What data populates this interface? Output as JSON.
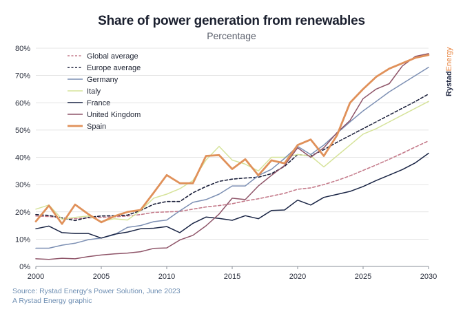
{
  "brand": {
    "part1": "Rystad",
    "part2": "Energy"
  },
  "source": {
    "line1": "Source: Rystad Energy's Power Solution, June 2023",
    "line2": "A Rystad Energy graphic"
  },
  "chart_data": {
    "type": "line",
    "title": "Share of power generation from renewables",
    "subtitle": "Percentage",
    "xlabel": "",
    "ylabel": "",
    "xlim": [
      2000,
      2030
    ],
    "ylim": [
      0,
      80
    ],
    "x_ticks": [
      2000,
      2005,
      2010,
      2015,
      2020,
      2025,
      2030
    ],
    "y_ticks": [
      0,
      10,
      20,
      30,
      40,
      50,
      60,
      70,
      80
    ],
    "y_tick_labels": [
      "0%",
      "10%",
      "20%",
      "30%",
      "40%",
      "50%",
      "60%",
      "70%",
      "80%"
    ],
    "grid": "horizontal",
    "legend_position": "top-left",
    "x": [
      2000,
      2001,
      2002,
      2003,
      2004,
      2005,
      2006,
      2007,
      2008,
      2009,
      2010,
      2011,
      2012,
      2013,
      2014,
      2015,
      2016,
      2017,
      2018,
      2019,
      2020,
      2021,
      2022,
      2023,
      2024,
      2025,
      2026,
      2027,
      2028,
      2029,
      2030
    ],
    "series": [
      {
        "name": "Global average",
        "color": "#c47a8a",
        "style": "dashed",
        "values": [
          18.5,
          18.3,
          17.8,
          17.5,
          17.8,
          18.0,
          18.2,
          18.5,
          19.0,
          19.8,
          20.0,
          20.2,
          21.0,
          21.8,
          22.3,
          23.0,
          24.0,
          24.8,
          25.8,
          26.8,
          28.3,
          28.8,
          30.0,
          31.5,
          33.2,
          35.2,
          37.2,
          39.3,
          41.5,
          43.8,
          46.0
        ]
      },
      {
        "name": "Europe average",
        "color": "#1a1f3a",
        "style": "dashed",
        "values": [
          19.0,
          18.7,
          17.8,
          16.8,
          18.0,
          18.5,
          18.6,
          18.8,
          20.5,
          22.8,
          23.8,
          23.8,
          27.0,
          29.3,
          31.2,
          32.0,
          32.4,
          32.7,
          34.0,
          36.7,
          41.0,
          40.5,
          42.8,
          45.5,
          48.0,
          50.5,
          53.0,
          55.5,
          58.0,
          60.5,
          63.2
        ]
      },
      {
        "name": "Germany",
        "color": "#7c8fb3",
        "style": "solid",
        "values": [
          6.7,
          6.7,
          7.8,
          8.5,
          9.8,
          10.4,
          11.6,
          14.3,
          15.0,
          16.4,
          17.0,
          20.4,
          23.5,
          24.5,
          26.5,
          29.5,
          29.5,
          33.3,
          35.6,
          39.6,
          44.0,
          41.0,
          44.5,
          48.8,
          53.0,
          57.0,
          60.5,
          64.0,
          67.0,
          70.0,
          73.0
        ]
      },
      {
        "name": "Italy",
        "color": "#d6e39a",
        "style": "solid",
        "values": [
          21.0,
          22.5,
          17.3,
          18.0,
          18.5,
          16.5,
          17.5,
          17.0,
          20.5,
          25.0,
          26.5,
          28.5,
          31.5,
          39.0,
          44.0,
          39.0,
          37.5,
          35.0,
          40.0,
          40.0,
          41.0,
          40.5,
          36.5,
          40.5,
          44.5,
          48.5,
          50.5,
          53.0,
          55.5,
          58.0,
          60.5
        ]
      },
      {
        "name": "France",
        "color": "#1a2545",
        "style": "solid",
        "values": [
          13.8,
          14.8,
          12.4,
          12.1,
          12.1,
          10.4,
          11.8,
          12.6,
          13.8,
          14.0,
          14.6,
          12.4,
          15.8,
          18.1,
          17.6,
          16.9,
          18.6,
          17.5,
          20.5,
          20.7,
          24.3,
          22.5,
          25.3,
          26.4,
          27.5,
          29.3,
          31.5,
          33.5,
          35.5,
          38.0,
          41.5
        ]
      },
      {
        "name": "United Kingdom",
        "color": "#8e5468",
        "style": "solid",
        "values": [
          2.8,
          2.6,
          3.0,
          2.8,
          3.6,
          4.2,
          4.6,
          4.9,
          5.4,
          6.6,
          6.8,
          9.7,
          11.4,
          14.9,
          19.2,
          25.0,
          24.5,
          29.5,
          33.4,
          37.0,
          43.5,
          40.0,
          43.5,
          49.0,
          53.5,
          61.5,
          65.0,
          67.0,
          73.5,
          77.0,
          78.0
        ]
      },
      {
        "name": "Spain",
        "color": "#e0915a",
        "style": "solid",
        "values": [
          16.5,
          22.3,
          15.6,
          22.7,
          19.2,
          16.2,
          18.4,
          20.0,
          20.7,
          27.0,
          33.5,
          30.5,
          30.5,
          40.5,
          40.8,
          35.7,
          39.3,
          33.4,
          38.9,
          37.8,
          44.5,
          46.5,
          40.5,
          48.0,
          60.0,
          65.0,
          69.5,
          72.5,
          74.5,
          76.5,
          77.5
        ]
      }
    ]
  }
}
